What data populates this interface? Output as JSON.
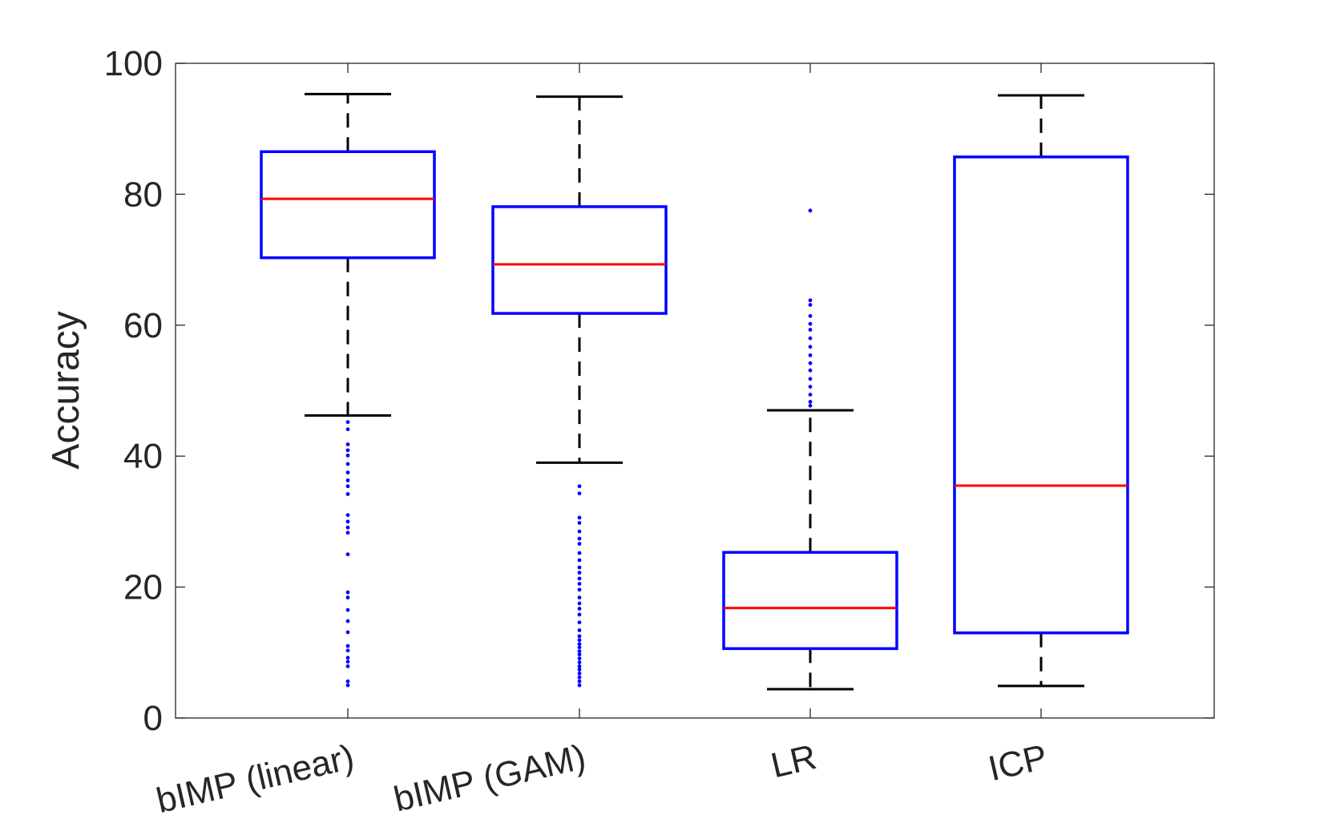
{
  "chart_data": {
    "type": "boxplot",
    "title": "",
    "xlabel": "",
    "ylabel": "Accuracy",
    "ylim": [
      0,
      100
    ],
    "yticks": [
      0,
      20,
      40,
      60,
      80,
      100
    ],
    "ytick_labels": [
      "0",
      "20",
      "40",
      "60",
      "80",
      "100"
    ],
    "grid": false,
    "categories": [
      "bIMP (linear)",
      "bIMP (GAM)",
      "LR",
      "ICP"
    ],
    "colors": {
      "box": "#0000ff",
      "median": "#ff0000",
      "whisker": "#000000",
      "outlier": "#0000ff",
      "axis": "#262626"
    },
    "boxes": [
      {
        "name": "bIMP (linear)",
        "whisker_low": 46.2,
        "q1": 70.3,
        "median": 79.3,
        "q3": 86.5,
        "whisker_high": 95.3,
        "outliers": [
          45.2,
          44.1,
          41.8,
          40.9,
          40.1,
          38.8,
          37.5,
          36.3,
          35.4,
          34.2,
          31.0,
          30.0,
          29.1,
          28.3,
          25.0,
          19.2,
          18.4,
          16.5,
          14.8,
          13.1,
          11.0,
          10.3,
          9.2,
          8.6,
          7.9,
          5.6,
          5.0
        ]
      },
      {
        "name": "bIMP (GAM)",
        "whisker_low": 39.0,
        "q1": 61.8,
        "median": 69.3,
        "q3": 78.1,
        "whisker_high": 94.9,
        "outliers": [
          35.4,
          34.3,
          30.6,
          29.8,
          28.5,
          27.4,
          26.6,
          25.2,
          24.1,
          23.0,
          22.2,
          21.3,
          20.5,
          19.6,
          18.4,
          17.5,
          16.7,
          15.8,
          14.6,
          13.4,
          12.5,
          11.9,
          11.3,
          10.8,
          10.2,
          9.7,
          9.1,
          8.5,
          7.9,
          7.4,
          6.8,
          6.2,
          5.6,
          5.0
        ]
      },
      {
        "name": "LR",
        "whisker_low": 4.4,
        "q1": 10.6,
        "median": 16.8,
        "q3": 25.3,
        "whisker_high": 47.0,
        "outliers": [
          77.5,
          63.8,
          63.1,
          61.4,
          60.2,
          59.3,
          58.0,
          56.7,
          55.4,
          54.2,
          53.1,
          51.8,
          50.6,
          49.4,
          48.3,
          47.7
        ]
      },
      {
        "name": "ICP",
        "whisker_low": 4.9,
        "q1": 13.0,
        "median": 35.5,
        "q3": 85.7,
        "whisker_high": 95.1,
        "outliers": []
      }
    ]
  }
}
